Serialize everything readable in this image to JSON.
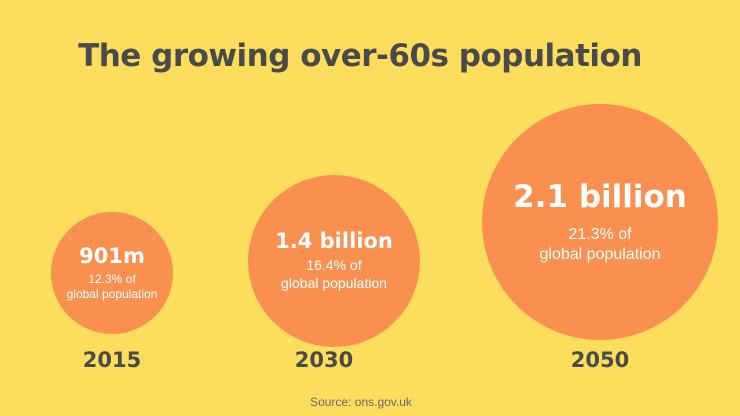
{
  "title": "The growing over-60s population",
  "source": "Source: ons.gov.uk",
  "colors": {
    "background": "#FDDD5C",
    "bubble": "#F9904F",
    "text_dark": "#4A4A4A",
    "text_light": "#FFFFFF"
  },
  "chart_data": {
    "type": "bubble",
    "title": "The growing over-60s population",
    "categories": [
      "2015",
      "2030",
      "2050"
    ],
    "series": [
      {
        "values": [
          901000000,
          1400000000,
          2100000000
        ],
        "value_labels": [
          "901m",
          "1.4 billion",
          "2.1 billion"
        ],
        "share_of_global_population_percent": [
          12.3,
          16.4,
          21.3
        ],
        "share_line1": [
          "12.3% of",
          "16.4% of",
          "21.3% of"
        ],
        "share_line2": [
          "global population",
          "global population",
          "global population"
        ]
      }
    ]
  }
}
